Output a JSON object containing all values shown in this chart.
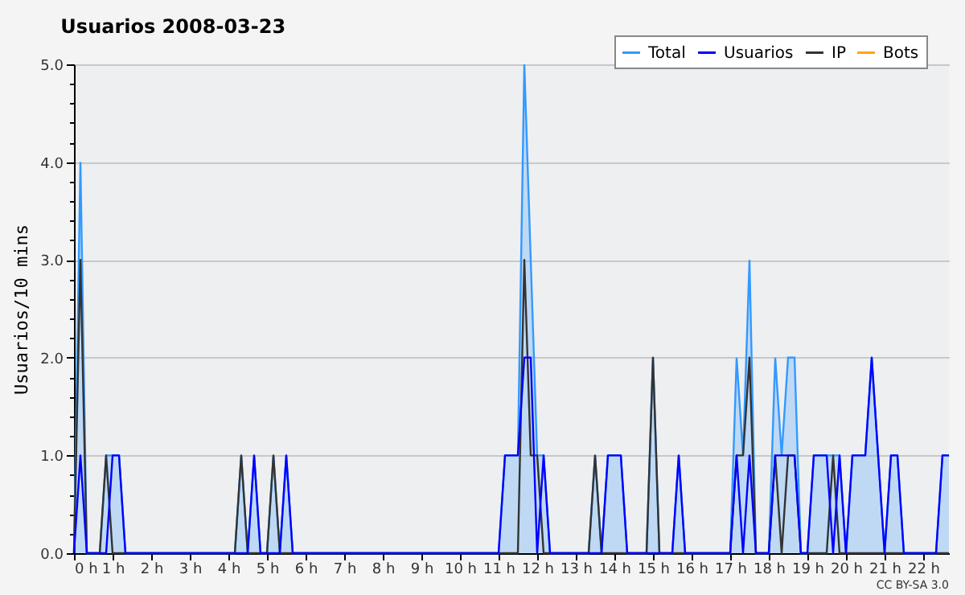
{
  "chart_data": {
    "type": "line",
    "title": "Usuarios  2008-03-23",
    "ylabel": "Usuarios/10 mins",
    "annotations": [
      "CC BY-SA 3.0"
    ],
    "x": [
      0,
      0.167,
      0.333,
      0.5,
      0.667,
      0.833,
      1,
      1.167,
      1.333,
      1.5,
      1.667,
      1.833,
      2,
      2.167,
      2.333,
      2.5,
      2.667,
      2.833,
      3,
      3.167,
      3.333,
      3.5,
      3.667,
      3.833,
      4,
      4.167,
      4.333,
      4.5,
      4.667,
      4.833,
      5,
      5.167,
      5.333,
      5.5,
      5.667,
      5.833,
      6,
      6.167,
      6.333,
      6.5,
      6.667,
      6.833,
      7,
      7.167,
      7.333,
      7.5,
      7.667,
      7.833,
      8,
      8.167,
      8.333,
      8.5,
      8.667,
      8.833,
      9,
      9.167,
      9.333,
      9.5,
      9.667,
      9.833,
      10,
      10.167,
      10.333,
      10.5,
      10.667,
      10.833,
      11,
      11.167,
      11.333,
      11.5,
      11.667,
      11.833,
      12,
      12.167,
      12.333,
      12.5,
      12.667,
      12.833,
      13,
      13.167,
      13.333,
      13.5,
      13.667,
      13.833,
      14,
      14.167,
      14.333,
      14.5,
      14.667,
      14.833,
      15,
      15.167,
      15.333,
      15.5,
      15.667,
      15.833,
      16,
      16.167,
      16.333,
      16.5,
      16.667,
      16.833,
      17,
      17.167,
      17.333,
      17.5,
      17.667,
      17.833,
      18,
      18.167,
      18.333,
      18.5,
      18.667,
      18.833,
      19,
      19.167,
      19.333,
      19.5,
      19.667,
      19.833,
      20,
      20.167,
      20.333,
      20.5,
      20.667,
      20.833,
      21,
      21.167,
      21.333,
      21.5,
      21.667,
      21.833,
      22,
      22.167,
      22.333,
      22.5,
      22.667
    ],
    "series": [
      {
        "name": "Total",
        "type": "area",
        "color": "#3399ff",
        "values": [
          0,
          4,
          0,
          0,
          0,
          1,
          1,
          1,
          0,
          0,
          0,
          0,
          0,
          0,
          0,
          0,
          0,
          0,
          0,
          0,
          0,
          0,
          0,
          0,
          0,
          0,
          1,
          0,
          1,
          0,
          0,
          1,
          0,
          1,
          0,
          0,
          0,
          0,
          0,
          0,
          0,
          0,
          0,
          0,
          0,
          0,
          0,
          0,
          0,
          0,
          0,
          0,
          0,
          0,
          0,
          0,
          0,
          0,
          0,
          0,
          0,
          0,
          0,
          0,
          0,
          0,
          0,
          1,
          1,
          1,
          5,
          3,
          1,
          1,
          0,
          0,
          0,
          0,
          0,
          0,
          0,
          1,
          0,
          1,
          1,
          1,
          0,
          0,
          0,
          0,
          2,
          0,
          0,
          0,
          1,
          0,
          0,
          0,
          0,
          0,
          0,
          0,
          0,
          2,
          1,
          3,
          0,
          0,
          0,
          2,
          1,
          2,
          2,
          0,
          0,
          1,
          1,
          1,
          1,
          1,
          0,
          1,
          1,
          1,
          2,
          1,
          0,
          1,
          1,
          0,
          0,
          0,
          0,
          0,
          0,
          1,
          1
        ]
      },
      {
        "name": "Usuarios",
        "color": "#0000ff",
        "values": [
          0,
          1,
          0,
          0,
          0,
          0,
          1,
          1,
          0,
          0,
          0,
          0,
          0,
          0,
          0,
          0,
          0,
          0,
          0,
          0,
          0,
          0,
          0,
          0,
          0,
          0,
          0,
          0,
          1,
          0,
          0,
          0,
          0,
          1,
          0,
          0,
          0,
          0,
          0,
          0,
          0,
          0,
          0,
          0,
          0,
          0,
          0,
          0,
          0,
          0,
          0,
          0,
          0,
          0,
          0,
          0,
          0,
          0,
          0,
          0,
          0,
          0,
          0,
          0,
          0,
          0,
          0,
          1,
          1,
          1,
          2,
          2,
          0,
          1,
          0,
          0,
          0,
          0,
          0,
          0,
          0,
          0,
          0,
          1,
          1,
          1,
          0,
          0,
          0,
          0,
          0,
          0,
          0,
          0,
          1,
          0,
          0,
          0,
          0,
          0,
          0,
          0,
          0,
          1,
          0,
          1,
          0,
          0,
          0,
          1,
          1,
          1,
          1,
          0,
          0,
          1,
          1,
          1,
          0,
          1,
          0,
          1,
          1,
          1,
          2,
          1,
          0,
          1,
          1,
          0,
          0,
          0,
          0,
          0,
          0,
          1,
          1
        ]
      },
      {
        "name": "IP",
        "color": "#333333",
        "values": [
          0,
          3,
          0,
          0,
          0,
          1,
          0,
          0,
          0,
          0,
          0,
          0,
          0,
          0,
          0,
          0,
          0,
          0,
          0,
          0,
          0,
          0,
          0,
          0,
          0,
          0,
          1,
          0,
          0,
          0,
          0,
          1,
          0,
          0,
          0,
          0,
          0,
          0,
          0,
          0,
          0,
          0,
          0,
          0,
          0,
          0,
          0,
          0,
          0,
          0,
          0,
          0,
          0,
          0,
          0,
          0,
          0,
          0,
          0,
          0,
          0,
          0,
          0,
          0,
          0,
          0,
          0,
          0,
          0,
          0,
          3,
          1,
          1,
          0,
          0,
          0,
          0,
          0,
          0,
          0,
          0,
          1,
          0,
          0,
          0,
          0,
          0,
          0,
          0,
          0,
          2,
          0,
          0,
          0,
          0,
          0,
          0,
          0,
          0,
          0,
          0,
          0,
          0,
          1,
          1,
          2,
          0,
          0,
          0,
          1,
          0,
          1,
          1,
          0,
          0,
          0,
          0,
          0,
          1,
          0,
          0,
          0,
          0,
          0,
          0,
          0,
          0,
          0,
          0,
          0,
          0,
          0,
          0,
          0,
          0,
          0,
          0
        ]
      },
      {
        "name": "Bots",
        "color": "#ffa500",
        "values": [
          null,
          null,
          null,
          null,
          null,
          null,
          null,
          null,
          null,
          null,
          null,
          null,
          null,
          null,
          null,
          null,
          null,
          null,
          null,
          null,
          null,
          null,
          null,
          null,
          null,
          null,
          null,
          null,
          null,
          null,
          null,
          null,
          null,
          null,
          null,
          null,
          null,
          null,
          null,
          null,
          null,
          null,
          null,
          null,
          null,
          null,
          null,
          null,
          null,
          null,
          null,
          null,
          null,
          null,
          null,
          null,
          null,
          null,
          null,
          null,
          null,
          null,
          null,
          null,
          null,
          null,
          null,
          null,
          null,
          null,
          null,
          null,
          null,
          null,
          null,
          null,
          null,
          null,
          null,
          null,
          null,
          null,
          null,
          null,
          null,
          null,
          null,
          null,
          null,
          null,
          null,
          null,
          null,
          null,
          null,
          null,
          null,
          null,
          null,
          null,
          null,
          null,
          null,
          null,
          null,
          null,
          null,
          null,
          null,
          null,
          null,
          null,
          null,
          null,
          null,
          null,
          null,
          null,
          null,
          null,
          null,
          null,
          null,
          null,
          null,
          null,
          null,
          null,
          null,
          null,
          null,
          null,
          null,
          null,
          null,
          null,
          null
        ]
      }
    ],
    "xlim": [
      0,
      22.667
    ],
    "xticks": [
      {
        "value": 0,
        "label": "0 h"
      },
      {
        "value": 1,
        "label": "1 h"
      },
      {
        "value": 2,
        "label": "2 h"
      },
      {
        "value": 3,
        "label": "3 h"
      },
      {
        "value": 4,
        "label": "4 h"
      },
      {
        "value": 5,
        "label": "5 h"
      },
      {
        "value": 6,
        "label": "6 h"
      },
      {
        "value": 7,
        "label": "7 h"
      },
      {
        "value": 8,
        "label": "8 h"
      },
      {
        "value": 9,
        "label": "9 h"
      },
      {
        "value": 10,
        "label": "10 h"
      },
      {
        "value": 11,
        "label": "11 h"
      },
      {
        "value": 12,
        "label": "12 h"
      },
      {
        "value": 13,
        "label": "13 h"
      },
      {
        "value": 14,
        "label": "14 h"
      },
      {
        "value": 15,
        "label": "15 h"
      },
      {
        "value": 16,
        "label": "16 h"
      },
      {
        "value": 17,
        "label": "17 h"
      },
      {
        "value": 18,
        "label": "18 h"
      },
      {
        "value": 19,
        "label": "19 h"
      },
      {
        "value": 20,
        "label": "20 h"
      },
      {
        "value": 21,
        "label": "21 h"
      },
      {
        "value": 22,
        "label": "22 h"
      }
    ],
    "ylim": [
      0,
      5
    ],
    "yticks": [
      {
        "value": 0,
        "label": "0.0"
      },
      {
        "value": 0.2,
        "label": null
      },
      {
        "value": 0.4,
        "label": null
      },
      {
        "value": 0.6,
        "label": null
      },
      {
        "value": 0.8,
        "label": null
      },
      {
        "value": 1,
        "label": "1.0"
      },
      {
        "value": 1.2,
        "label": null
      },
      {
        "value": 1.4,
        "label": null
      },
      {
        "value": 1.6,
        "label": null
      },
      {
        "value": 1.8,
        "label": null
      },
      {
        "value": 2,
        "label": "2.0"
      },
      {
        "value": 2.2,
        "label": null
      },
      {
        "value": 2.4,
        "label": null
      },
      {
        "value": 2.6,
        "label": null
      },
      {
        "value": 2.8,
        "label": null
      },
      {
        "value": 3,
        "label": "3.0"
      },
      {
        "value": 3.2,
        "label": null
      },
      {
        "value": 3.4,
        "label": null
      },
      {
        "value": 3.6,
        "label": null
      },
      {
        "value": 3.8,
        "label": null
      },
      {
        "value": 4,
        "label": "4.0"
      },
      {
        "value": 4.2,
        "label": null
      },
      {
        "value": 4.4,
        "label": null
      },
      {
        "value": 4.6,
        "label": null
      },
      {
        "value": 4.8,
        "label": null
      },
      {
        "value": 5,
        "label": "5.0"
      }
    ],
    "grid": "y",
    "legend": "top right"
  }
}
